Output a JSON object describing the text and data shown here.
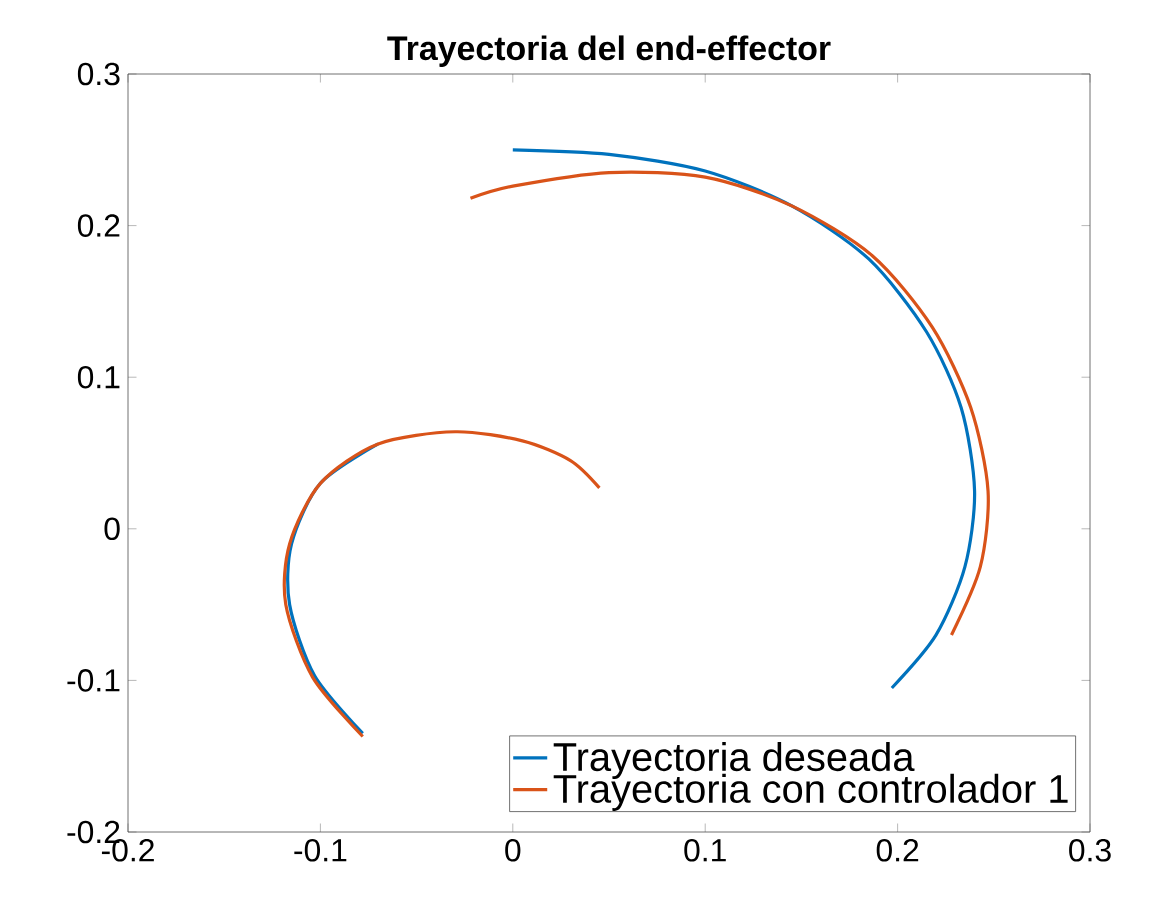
{
  "chart_data": {
    "type": "line",
    "title": "Trayectoria del end-effector",
    "xlim": [
      -0.2,
      0.3
    ],
    "xticks": [
      -0.2,
      -0.1,
      0,
      0.1,
      0.2,
      0.3
    ],
    "ylim": [
      -0.2,
      0.3
    ],
    "yticks": [
      -0.2,
      -0.1,
      0,
      0.1,
      0.2,
      0.3
    ],
    "grid": false,
    "legend": "bottom right",
    "marker": "none",
    "line_style": "solid",
    "series": [
      {
        "name": "Trayectoria deseada",
        "color": "#0072bd",
        "x": [
          0,
          0.05,
          0.1,
          0.145,
          0.185,
          0.215,
          0.233,
          0.24,
          0.235,
          0.22,
          0.197,
          0.165,
          0.125,
          0.08,
          0.04,
          0.0,
          -0.04,
          -0.078,
          -0.103,
          -0.116,
          -0.115,
          -0.1,
          -0.07
        ],
        "values": [
          0.25,
          0.247,
          0.236,
          0.213,
          0.178,
          0.13,
          0.08,
          0.025,
          -0.025,
          -0.07,
          -0.105,
          null,
          null,
          null,
          null,
          null,
          null,
          -0.135,
          -0.097,
          -0.05,
          -0.01,
          0.03,
          0.056
        ]
      },
      {
        "name": "Trayectoria con controlador 1",
        "color": "#d95319",
        "x": [
          -0.022,
          0.0,
          0.05,
          0.1,
          0.145,
          0.187,
          0.218,
          0.238,
          0.247,
          0.243,
          0.228,
          0.204,
          0.17,
          0.128,
          0.085,
          0.045,
          0.0,
          -0.04,
          -0.078,
          -0.104,
          -0.118,
          -0.116,
          -0.1,
          -0.07,
          -0.03,
          0.005,
          0.03,
          0.045
        ],
        "values": [
          0.218,
          0.226,
          0.235,
          0.232,
          0.213,
          0.18,
          0.133,
          0.08,
          0.025,
          -0.025,
          -0.07,
          null,
          null,
          null,
          null,
          null,
          null,
          null,
          -0.137,
          -0.098,
          -0.05,
          -0.01,
          0.03,
          0.056,
          0.064,
          0.058,
          0.045,
          0.027
        ]
      }
    ]
  }
}
